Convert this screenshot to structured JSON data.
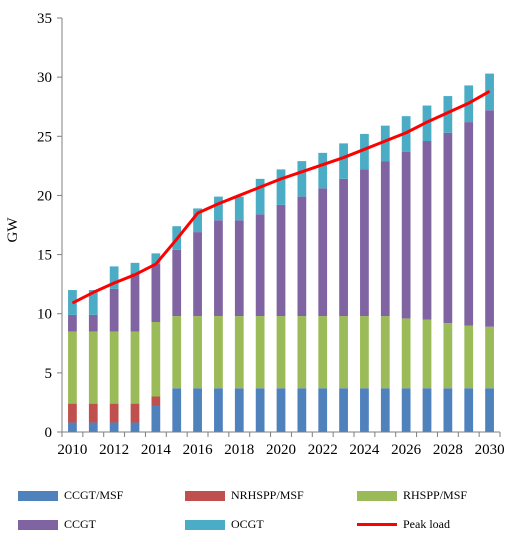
{
  "chart_data": {
    "type": "bar",
    "stacked": true,
    "ylabel": "GW",
    "xlabel": "",
    "ylim": [
      0,
      35
    ],
    "yticks": [
      0,
      5,
      10,
      15,
      20,
      25,
      30,
      35
    ],
    "x": [
      2010,
      2011,
      2012,
      2013,
      2014,
      2015,
      2016,
      2017,
      2018,
      2019,
      2020,
      2021,
      2022,
      2023,
      2024,
      2025,
      2026,
      2027,
      2028,
      2029,
      2030
    ],
    "xtick_labels": [
      "2010",
      "2012",
      "2014",
      "2016",
      "2018",
      "2020",
      "2022",
      "2024",
      "2026",
      "2028",
      "2030"
    ],
    "series": [
      {
        "name": "CCGT/MSF",
        "color": "#4f81bd",
        "values": [
          0.8,
          0.8,
          0.8,
          0.8,
          2.2,
          3.7,
          3.7,
          3.7,
          3.7,
          3.7,
          3.7,
          3.7,
          3.7,
          3.7,
          3.7,
          3.7,
          3.7,
          3.7,
          3.7,
          3.7,
          3.7
        ]
      },
      {
        "name": "NRHSPP/MSF",
        "color": "#c0504d",
        "values": [
          1.6,
          1.6,
          1.6,
          1.6,
          0.8,
          0,
          0,
          0,
          0,
          0,
          0,
          0,
          0,
          0,
          0,
          0,
          0,
          0,
          0,
          0,
          0
        ]
      },
      {
        "name": "RHSPP/MSF",
        "color": "#9bbb59",
        "values": [
          6.1,
          6.1,
          6.1,
          6.1,
          6.3,
          6.1,
          6.1,
          6.1,
          6.1,
          6.1,
          6.1,
          6.1,
          6.1,
          6.1,
          6.1,
          6.1,
          5.9,
          5.8,
          5.5,
          5.3,
          5.2
        ]
      },
      {
        "name": "CCGT",
        "color": "#8064a2",
        "values": [
          1.4,
          1.4,
          3.6,
          4.9,
          4.9,
          5.6,
          7.1,
          8.1,
          8.1,
          8.6,
          9.4,
          10.1,
          10.8,
          11.6,
          12.4,
          13.1,
          14.1,
          15.1,
          16.1,
          17.2,
          18.3
        ]
      },
      {
        "name": "OCGT",
        "color": "#4bacc6",
        "values": [
          2.1,
          2.1,
          1.9,
          0.9,
          0.9,
          2.0,
          2.0,
          2.0,
          2.0,
          3.0,
          3.0,
          3.0,
          3.0,
          3.0,
          3.0,
          3.0,
          3.0,
          3.0,
          3.1,
          3.1,
          3.1
        ]
      }
    ],
    "line_series": {
      "name": "Peak load",
      "color": "#ff0000",
      "values": [
        10.9,
        11.8,
        12.6,
        13.3,
        14.2,
        16.3,
        18.5,
        19.3,
        20.0,
        20.7,
        21.4,
        22.0,
        22.6,
        23.2,
        23.9,
        24.6,
        25.3,
        26.2,
        27.0,
        27.8,
        28.8
      ]
    },
    "grid": false,
    "legend_position": "bottom"
  }
}
